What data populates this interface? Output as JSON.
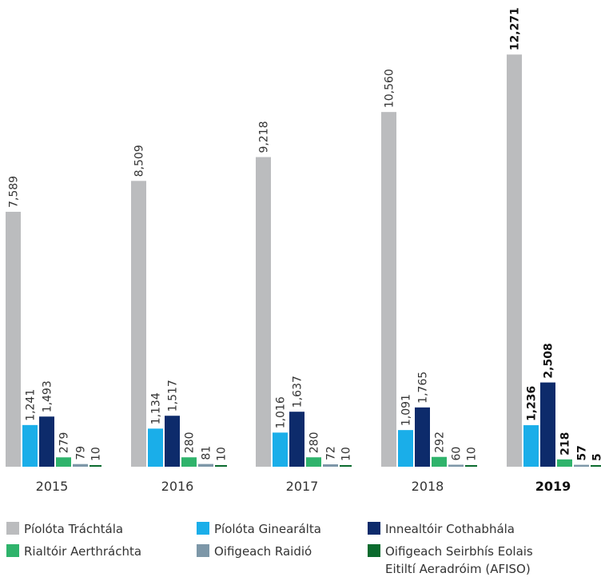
{
  "chart_data": {
    "type": "bar",
    "categories": [
      "2015",
      "2016",
      "2017",
      "2018",
      "2019"
    ],
    "highlight_category": "2019",
    "series": [
      {
        "name": "Píolóta Tráchtála",
        "color": "#bbbcbe",
        "values": [
          7589,
          8509,
          9218,
          10560,
          12271
        ],
        "labels": [
          "7,589",
          "8,509",
          "9,218",
          "10,560",
          "12,271"
        ]
      },
      {
        "name": "Píolóta Ginearálta",
        "color": "#1aaee9",
        "values": [
          1241,
          1134,
          1016,
          1091,
          1236
        ],
        "labels": [
          "1,241",
          "1,134",
          "1,016",
          "1,091",
          "1,236"
        ]
      },
      {
        "name": "Innealtóir Cothabhála",
        "color": "#0d2b6b",
        "values": [
          1493,
          1517,
          1637,
          1765,
          2508
        ],
        "labels": [
          "1,493",
          "1,517",
          "1,637",
          "1,765",
          "2,508"
        ]
      },
      {
        "name": "Rialtóir Aerthráchta",
        "color": "#2fb36b",
        "values": [
          279,
          280,
          280,
          292,
          218
        ],
        "labels": [
          "279",
          "280",
          "280",
          "292",
          "218"
        ]
      },
      {
        "name": "Oifigeach Raidió",
        "color": "#7d97a8",
        "values": [
          79,
          81,
          72,
          60,
          57
        ],
        "labels": [
          "79",
          "81",
          "72",
          "60",
          "57"
        ]
      },
      {
        "name": "Oifigeach Seirbhís Eolais Eitiltí Aeradróim (AFISO)",
        "legend_lines": [
          "Oifigeach Seirbhís Eolais",
          "Eitiltí Aeradróim (AFISO)"
        ],
        "color": "#0b6b2e",
        "values": [
          10,
          10,
          10,
          10,
          5
        ],
        "labels": [
          "10",
          "10",
          "10",
          "10",
          "5"
        ]
      }
    ],
    "ylim": [
      0,
      12800
    ],
    "grid": false,
    "legend_position": "bottom"
  }
}
